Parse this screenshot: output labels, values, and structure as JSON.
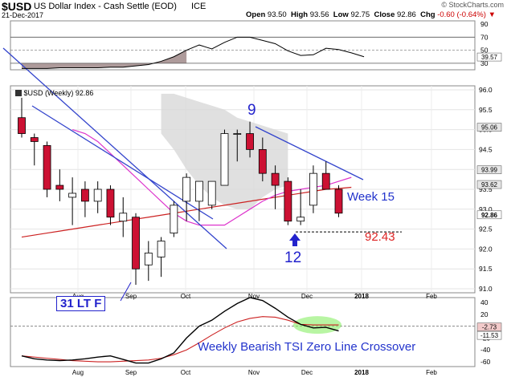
{
  "header": {
    "symbol": "$USD",
    "name": "US Dollar Index - Cash Settle (EOD)",
    "exchange": "ICE",
    "date": "21-Dec-2017",
    "watermark": "© StockCharts.com",
    "open_label": "Open",
    "open": "93.50",
    "high_label": "High",
    "high": "93.56",
    "low_label": "Low",
    "low": "92.75",
    "close_label": "Close",
    "close": "92.86",
    "chg_label": "Chg",
    "chg": "-0.60 (-0.64%)",
    "chg_color": "#cc0000"
  },
  "colors": {
    "up_candle": "#ffffff",
    "down_candle": "#cc1133",
    "ma_long": "#cc2222",
    "ma_short": "#dd33cc",
    "cloud": "#d8d8d8",
    "trendline": "#3344cc",
    "annotation_blue": "#2222cc",
    "annotation_red": "#dd2222",
    "tsi_highlight": "#88ee66"
  },
  "chart_data": [
    {
      "type": "line",
      "panel": "top-indicator",
      "ylim": [
        20,
        95
      ],
      "y_ticks": [
        30,
        50,
        70,
        90
      ],
      "reference_lines": [
        30,
        50,
        70
      ],
      "last_value": "39.57",
      "values": [
        22,
        22,
        22,
        23,
        23,
        23,
        23,
        24,
        24,
        26,
        28,
        33,
        40,
        50,
        58,
        52,
        62,
        70,
        70,
        65,
        60,
        49,
        42,
        43,
        53,
        51,
        46,
        40
      ]
    },
    {
      "type": "candlestick",
      "panel": "price",
      "series_label": "$USD (Weekly) 92.86",
      "ylim": [
        90.9,
        96.1
      ],
      "y_ticks": [
        91.0,
        91.5,
        92.0,
        92.5,
        93.0,
        93.5,
        94.0,
        94.5,
        95.0,
        95.5,
        96.0
      ],
      "x_labels": [
        "Aug",
        "Sep",
        "Oct",
        "Nov",
        "Dec",
        "2018",
        "Feb"
      ],
      "price_badges": [
        "95.06",
        "93.99",
        "93.62",
        "92.86"
      ],
      "candles": [
        {
          "o": 95.3,
          "h": 95.8,
          "l": 94.8,
          "c": 94.9,
          "dir": "down"
        },
        {
          "o": 94.8,
          "h": 94.9,
          "l": 94.1,
          "c": 94.7,
          "dir": "down"
        },
        {
          "o": 94.6,
          "h": 94.7,
          "l": 93.3,
          "c": 93.5,
          "dir": "down"
        },
        {
          "o": 93.6,
          "h": 94.0,
          "l": 93.2,
          "c": 93.5,
          "dir": "down"
        },
        {
          "o": 93.3,
          "h": 93.8,
          "l": 92.6,
          "c": 93.4,
          "dir": "up"
        },
        {
          "o": 93.5,
          "h": 93.7,
          "l": 92.8,
          "c": 93.2,
          "dir": "down"
        },
        {
          "o": 93.2,
          "h": 93.7,
          "l": 92.9,
          "c": 93.5,
          "dir": "up"
        },
        {
          "o": 93.5,
          "h": 93.6,
          "l": 92.6,
          "c": 92.8,
          "dir": "down"
        },
        {
          "o": 92.7,
          "h": 93.3,
          "l": 92.3,
          "c": 92.9,
          "dir": "up"
        },
        {
          "o": 92.8,
          "h": 92.9,
          "l": 91.1,
          "c": 91.5,
          "dir": "down"
        },
        {
          "o": 91.6,
          "h": 92.2,
          "l": 91.2,
          "c": 91.9,
          "dir": "up"
        },
        {
          "o": 91.8,
          "h": 92.3,
          "l": 91.3,
          "c": 92.2,
          "dir": "up"
        },
        {
          "o": 92.4,
          "h": 93.2,
          "l": 92.3,
          "c": 93.1,
          "dir": "up"
        },
        {
          "o": 93.2,
          "h": 93.9,
          "l": 92.7,
          "c": 93.8,
          "dir": "up"
        },
        {
          "o": 93.2,
          "h": 93.7,
          "l": 92.7,
          "c": 93.7,
          "dir": "up"
        },
        {
          "o": 93.1,
          "h": 93.7,
          "l": 93.0,
          "c": 93.7,
          "dir": "up"
        },
        {
          "o": 93.6,
          "h": 95.0,
          "l": 93.6,
          "c": 94.9,
          "dir": "up"
        },
        {
          "o": 94.9,
          "h": 95.0,
          "l": 94.2,
          "c": 94.9,
          "dir": "up"
        },
        {
          "o": 94.9,
          "h": 95.2,
          "l": 94.3,
          "c": 94.5,
          "dir": "down"
        },
        {
          "o": 94.5,
          "h": 94.8,
          "l": 93.7,
          "c": 93.9,
          "dir": "down"
        },
        {
          "o": 93.9,
          "h": 94.1,
          "l": 93.0,
          "c": 93.6,
          "dir": "down"
        },
        {
          "o": 93.7,
          "h": 93.8,
          "l": 92.6,
          "c": 92.7,
          "dir": "down"
        },
        {
          "o": 92.7,
          "h": 93.5,
          "l": 92.6,
          "c": 92.8,
          "dir": "up"
        },
        {
          "o": 93.1,
          "h": 94.1,
          "l": 92.9,
          "c": 93.9,
          "dir": "up"
        },
        {
          "o": 93.9,
          "h": 94.2,
          "l": 93.5,
          "c": 93.5,
          "dir": "down"
        },
        {
          "o": 93.5,
          "h": 93.6,
          "l": 92.8,
          "c": 92.9,
          "dir": "down"
        }
      ],
      "ma_long": [
        92.3,
        92.35,
        92.4,
        92.45,
        92.5,
        92.55,
        92.6,
        92.65,
        92.7,
        92.75,
        92.8,
        92.85,
        92.9,
        92.95,
        93.0,
        93.05,
        93.1,
        93.15,
        93.2,
        93.25,
        93.3,
        93.35,
        93.4,
        93.45,
        93.5,
        93.52,
        93.55
      ],
      "ma_short": [
        95.0,
        94.9,
        94.7,
        94.4,
        94.1,
        93.8,
        93.5,
        93.2,
        92.9,
        92.7,
        92.6,
        92.6,
        92.6,
        92.8,
        93.0,
        93.2,
        93.35,
        93.45,
        93.5,
        93.55,
        93.6,
        93.7,
        93.8
      ],
      "cloud_top": [
        95.9,
        95.9,
        95.8,
        95.7,
        95.6,
        95.5,
        95.3,
        95.2,
        95.1,
        95.0,
        94.9
      ],
      "cloud_bottom": [
        94.9,
        94.5,
        94.0,
        93.6,
        93.3,
        93.1,
        93.0,
        93.0,
        93.3,
        93.5,
        93.6
      ],
      "support_level": 92.43
    },
    {
      "type": "line",
      "panel": "bottom-indicator",
      "ylim": [
        -68,
        48
      ],
      "y_ticks": [
        40,
        20,
        -20,
        -40,
        -60
      ],
      "badges": [
        "-2.73",
        "-11.53"
      ],
      "series": [
        {
          "values": [
            -50,
            -55,
            -57,
            -58,
            -57,
            -55,
            -52,
            -50,
            -56,
            -62,
            -62,
            -55,
            -45,
            -20,
            0,
            10,
            25,
            38,
            48,
            43,
            30,
            15,
            3,
            -3,
            -2,
            -8
          ]
        },
        {
          "values": [
            -50,
            -52,
            -54,
            -56,
            -58,
            -59,
            -60,
            -60,
            -59,
            -58,
            -57,
            -54,
            -48,
            -40,
            -28,
            -15,
            -3,
            7,
            13,
            16,
            15,
            10,
            3,
            2,
            2,
            2
          ]
        }
      ]
    }
  ],
  "annotations": {
    "label_9": "9",
    "label_12": "12",
    "label_week15": "Week 15",
    "label_support": "92.43",
    "label_31ltf": "31 LT F",
    "label_tsi": "Weekly Bearish TSI Zero Line Crossover"
  }
}
